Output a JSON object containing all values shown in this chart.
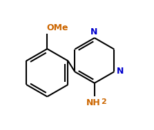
{
  "background_color": "#ffffff",
  "bond_color": "#000000",
  "bond_width": 1.5,
  "label_N_color": "#0000cc",
  "label_OMe_color": "#cc6600",
  "label_NH2_color": "#cc6600",
  "label_N_fontsize": 9,
  "label_OMe_fontsize": 9,
  "label_NH2_fontsize": 9,
  "figsize": [
    2.23,
    1.89
  ],
  "dpi": 100,
  "xlim": [
    0.0,
    1.0
  ],
  "ylim": [
    0.0,
    1.0
  ]
}
